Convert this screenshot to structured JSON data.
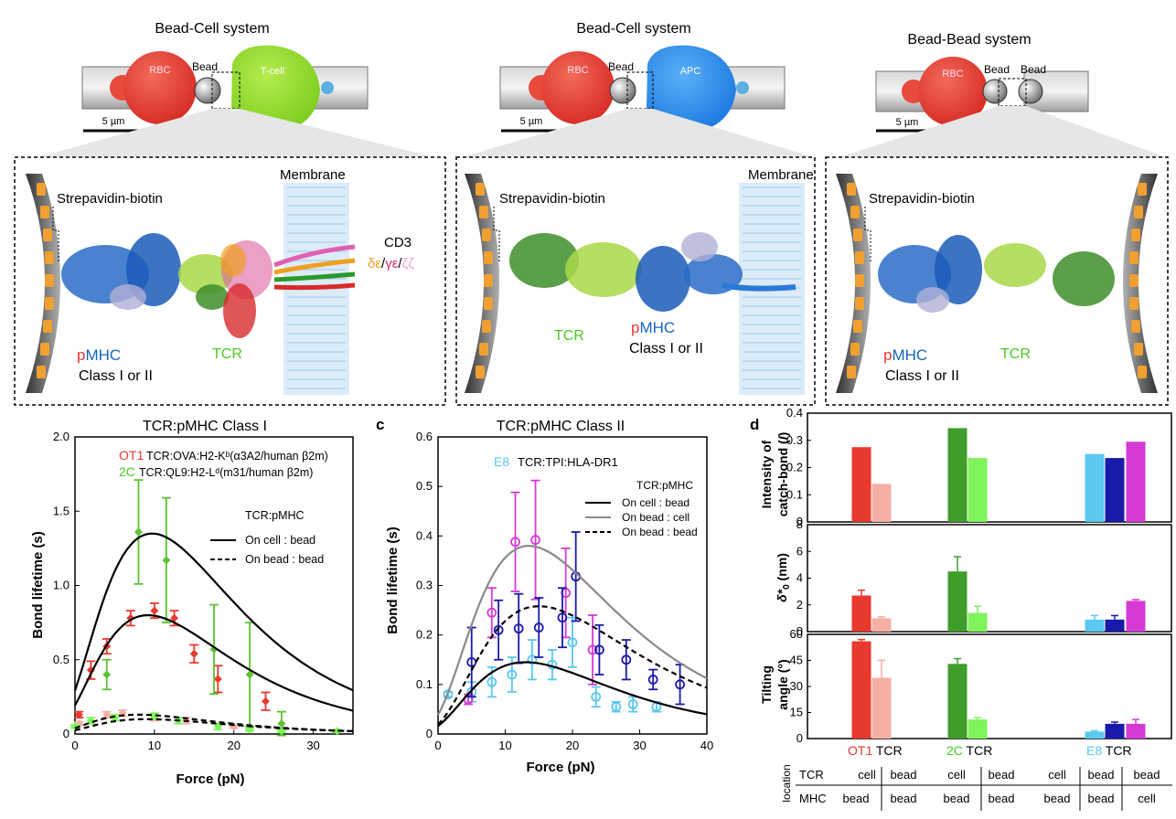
{
  "top": {
    "panel1": {
      "title": "Bead-Cell system",
      "rbc": "RBC",
      "bead": "Bead",
      "cell": "T-cell",
      "scale": "5 µm"
    },
    "panel2": {
      "title": "Bead-Cell system",
      "rbc": "RBC",
      "bead": "Bead",
      "cell": "APC",
      "scale": "5 µm"
    },
    "panel3": {
      "title": "Bead-Bead system",
      "rbc": "RBC",
      "bead1": "Bead",
      "bead2": "Bead",
      "scale": "5 µm"
    }
  },
  "zoom": {
    "box1": {
      "strep": "Strepavidin-biotin",
      "membrane": "Membrane",
      "cd3": "CD3",
      "cd3_de": "δε",
      "sep1": "/",
      "cd3_ge": "γε",
      "sep2": "/",
      "cd3_zz": "ζζ",
      "p": "p",
      "mhc": "MHC",
      "mhc_class": "Class I or II",
      "tcr": "TCR"
    },
    "box2": {
      "strep": "Strepavidin-biotin",
      "membrane": "Membrane",
      "tcr": "TCR",
      "p": "p",
      "mhc": "MHC",
      "mhc_class": "Class I or II"
    },
    "box3": {
      "strep": "Strepavidin-biotin",
      "p": "p",
      "mhc": "MHC",
      "mhc_class": "Class I or II",
      "tcr": "TCR"
    }
  },
  "colors": {
    "red": "#e8392f",
    "pink": "#f5b0a3",
    "green": "#5cc233",
    "lightgreen": "#7ef45a",
    "darkgreen": "#3f9e2a",
    "blue": "#1565c0",
    "cyan": "#5ac8f0",
    "darkblue": "#1a1aaa",
    "magenta": "#d63ad6",
    "gray": "#8a8a8a"
  },
  "chart_data": [
    {
      "id": "b",
      "type": "line",
      "title": "TCR:pMHC Class I",
      "xlabel": "Force (pN)",
      "ylabel": "Bond lifetime (s)",
      "xlim": [
        0,
        35
      ],
      "ylim": [
        0,
        2.0
      ],
      "xticks": [
        0,
        10,
        20,
        30
      ],
      "yticks": [
        0,
        0.5,
        1.0,
        1.5,
        2.0
      ],
      "ytick_labels": [
        "0",
        "0.5",
        "1.0",
        "1.5",
        "2.0"
      ],
      "legend_ot1_name": "OT1",
      "legend_ot1_desc": "TCR:OVA:H2-Kᵇ(α3A2/human β2m)",
      "legend_2c_name": "2C",
      "legend_2c_desc": "TCR:QL9:H2-Lᵈ(m31/human β2m)",
      "legend_title": "TCR:pMHC",
      "legend_solid": "On cell : bead",
      "legend_dashed": "On bead : bead",
      "series": [
        {
          "name": "OT1 cell",
          "color": "#e8392f",
          "marker": "diamond",
          "x": [
            0.5,
            2,
            4,
            7,
            10,
            12.5,
            15,
            18,
            24
          ],
          "y": [
            0.13,
            0.43,
            0.59,
            0.78,
            0.83,
            0.78,
            0.54,
            0.37,
            0.22
          ],
          "err": [
            0.02,
            0.06,
            0.05,
            0.05,
            0.05,
            0.05,
            0.06,
            0.09,
            0.06
          ]
        },
        {
          "name": "2C cell",
          "color": "#5cc233",
          "marker": "diamond",
          "x": [
            4,
            8,
            11.5,
            17.5,
            22,
            26
          ],
          "y": [
            0.4,
            1.36,
            1.17,
            0.57,
            0.4,
            0.07
          ],
          "err": [
            0.1,
            0.35,
            0.42,
            0.3,
            0.35,
            0.08
          ]
        },
        {
          "name": "OT1 bead",
          "color": "#f5b0a3",
          "marker": "diamond",
          "x": [
            0.5,
            4,
            6,
            10,
            14,
            20
          ],
          "y": [
            0.07,
            0.13,
            0.14,
            0.11,
            0.09,
            0.05
          ],
          "err": [
            0.01,
            0.02,
            0.02,
            0.02,
            0.02,
            0.01
          ]
        },
        {
          "name": "2C bead",
          "color": "#7ef45a",
          "marker": "diamond",
          "x": [
            0,
            2,
            5,
            10,
            13,
            18,
            22,
            26,
            33
          ],
          "y": [
            0.05,
            0.09,
            0.11,
            0.12,
            0.09,
            0.05,
            0.03,
            0.02,
            0.02
          ],
          "err": [
            0.01,
            0.02,
            0.02,
            0.02,
            0.02,
            0.02,
            0.01,
            0.01,
            0.01
          ]
        }
      ],
      "fits": [
        {
          "style": "solid",
          "peak": 1.35,
          "peak_x": 9.7
        },
        {
          "style": "solid",
          "peak": 0.8,
          "peak_x": 9.2
        },
        {
          "style": "dashed",
          "peak": 0.13,
          "peak_x": 8
        },
        {
          "style": "dashed",
          "peak": 0.1,
          "peak_x": 9
        }
      ]
    },
    {
      "id": "c",
      "type": "line",
      "title": "TCR:pMHC Class II",
      "xlabel": "Force (pN)",
      "ylabel": "Bond lifetime (s)",
      "xlim": [
        0,
        40
      ],
      "ylim": [
        0,
        0.6
      ],
      "xticks": [
        0,
        10,
        20,
        30,
        40
      ],
      "yticks": [
        0,
        0.1,
        0.2,
        0.3,
        0.4,
        0.5,
        0.6
      ],
      "ytick_labels": [
        "0",
        "0.1",
        "0.2",
        "0.3",
        "0.4",
        "0.5",
        "0.6"
      ],
      "legend_e8_name": "E8",
      "legend_e8_desc": "TCR:TPI:HLA-DR1",
      "legend_title": "TCR:pMHC",
      "legend_a": "On cell : bead",
      "legend_b": "On bead : cell",
      "legend_c": "On bead : bead",
      "series": [
        {
          "name": "E8 cell-bead",
          "color": "#5ac8f0",
          "marker": "circle",
          "x": [
            1.5,
            5,
            8,
            11,
            14,
            17,
            20,
            23.5,
            26.5,
            29,
            32.5
          ],
          "y": [
            0.08,
            0.085,
            0.105,
            0.12,
            0.15,
            0.14,
            0.185,
            0.075,
            0.055,
            0.06,
            0.055
          ],
          "err": [
            0.005,
            0.02,
            0.03,
            0.035,
            0.04,
            0.03,
            0.05,
            0.02,
            0.01,
            0.015,
            0.01
          ]
        },
        {
          "name": "E8 bead-cell",
          "color": "#d63ad6",
          "marker": "circle",
          "x": [
            4.5,
            8,
            11.5,
            14.5,
            19,
            23
          ],
          "y": [
            0.07,
            0.245,
            0.388,
            0.392,
            0.285,
            0.17
          ],
          "err": [
            0.01,
            0.05,
            0.1,
            0.12,
            0.09,
            0.07
          ]
        },
        {
          "name": "E8 bead-bead",
          "color": "#1a1aaa",
          "marker": "circle",
          "x": [
            5,
            9,
            12,
            15,
            18.5,
            20.5,
            24,
            28,
            32,
            36
          ],
          "y": [
            0.145,
            0.21,
            0.213,
            0.215,
            0.235,
            0.318,
            0.17,
            0.15,
            0.11,
            0.1
          ],
          "err": [
            0.07,
            0.06,
            0.07,
            0.06,
            0.06,
            0.09,
            0.05,
            0.04,
            0.02,
            0.04
          ]
        }
      ],
      "fits": [
        {
          "style": "solid-black",
          "peak": 0.145,
          "peak_x": 13
        },
        {
          "style": "solid-gray",
          "peak": 0.38,
          "peak_x": 13.5
        },
        {
          "style": "dashed-black",
          "peak": 0.258,
          "peak_x": 15
        }
      ]
    },
    {
      "id": "d",
      "type": "bar",
      "title": "",
      "panel_label": "d",
      "categories": [
        "OT1 cell",
        "OT1 bead",
        "2C cell",
        "2C bead",
        "E8 cell",
        "E8 bead",
        "E8 bead/cell"
      ],
      "colors": [
        "#e8392f",
        "#f5b0a3",
        "#3f9e2a",
        "#7ef45a",
        "#5ac8f0",
        "#1a1aaa",
        "#d63ad6"
      ],
      "intensity": {
        "ylabel_1": "Intensity of",
        "ylabel_2": "catch-bond (",
        "ylabel_i": "I",
        "ylabel_3": ")",
        "ylim": [
          0,
          0.4
        ],
        "yticks": [
          "0",
          "0.1",
          "0.2",
          "0.3",
          "0.4"
        ],
        "values": [
          0.275,
          0.14,
          0.345,
          0.235,
          0.25,
          0.235,
          0.295
        ]
      },
      "delta": {
        "ylabel_sym": "δ*",
        "ylabel_sub": "0",
        "ylabel_unit": " (nm)",
        "ylim": [
          0,
          8
        ],
        "yticks": [
          "0",
          "2",
          "4",
          "6",
          "8"
        ],
        "values": [
          2.7,
          1.0,
          4.5,
          1.4,
          0.9,
          0.9,
          2.3
        ],
        "err": [
          0.4,
          0.1,
          1.1,
          0.5,
          0.3,
          0.3,
          0.1
        ]
      },
      "tilt": {
        "ylabel_1": "Tilting",
        "ylabel_2": "angle (°)",
        "ylim": [
          0,
          60
        ],
        "yticks": [
          "0",
          "15",
          "30",
          "45",
          "60"
        ],
        "values": [
          56,
          35,
          43,
          11,
          4,
          8.5,
          8.5
        ],
        "err": [
          1,
          10,
          3,
          1,
          0.5,
          1,
          2.5
        ]
      },
      "groups": [
        {
          "name": "OT1",
          "suffix": " TCR",
          "color": "#e8392f"
        },
        {
          "name": "2C",
          "suffix": " TCR",
          "color": "#5cc233"
        },
        {
          "name": "E8",
          "suffix": " TCR",
          "color": "#5ac8f0"
        }
      ],
      "location_label": "location",
      "row_tcr": "TCR",
      "row_mhc": "MHC",
      "tcr_loc": [
        "cell",
        "bead",
        "cell",
        "bead",
        "cell",
        "bead",
        "bead"
      ],
      "mhc_loc": [
        "bead",
        "bead",
        "bead",
        "bead",
        "bead",
        "bead",
        "cell"
      ]
    }
  ],
  "panel_labels": {
    "c": "c",
    "d": "d"
  }
}
